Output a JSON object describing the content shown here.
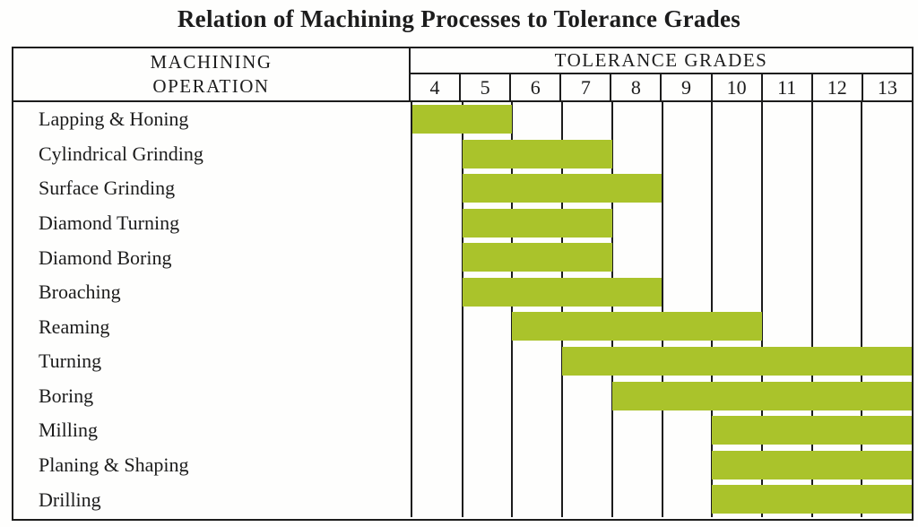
{
  "title": "Relation of Machining Processes to Tolerance Grades",
  "table": {
    "operation_header_line1": "MACHINING",
    "operation_header_line2": "OPERATION",
    "grades_header": "TOLERANCE GRADES",
    "grade_labels": [
      "4",
      "5",
      "6",
      "7",
      "8",
      "9",
      "10",
      "11",
      "12",
      "13"
    ]
  },
  "colors": {
    "bar": "#aac32b",
    "ink": "#1c1c1c"
  },
  "chart_data": {
    "type": "bar",
    "subtype": "horizontal-range-bars",
    "title": "Relation of Machining Processes to Tolerance Grades",
    "xlabel": "TOLERANCE GRADES",
    "ylabel": "MACHINING OPERATION",
    "x_ticks": [
      4,
      5,
      6,
      7,
      8,
      9,
      10,
      11,
      12,
      13
    ],
    "x_range": [
      4,
      13
    ],
    "grid": true,
    "legend": false,
    "bar_color": "#aac32b",
    "categories": [
      "Lapping & Honing",
      "Cylindrical Grinding",
      "Surface Grinding",
      "Diamond Turning",
      "Diamond Boring",
      "Broaching",
      "Reaming",
      "Turning",
      "Boring",
      "Milling",
      "Planing & Shaping",
      "Drilling"
    ],
    "rows": [
      {
        "operation": "Lapping & Honing",
        "grade_min": 4,
        "grade_max": 5
      },
      {
        "operation": "Cylindrical Grinding",
        "grade_min": 5,
        "grade_max": 7
      },
      {
        "operation": "Surface Grinding",
        "grade_min": 5,
        "grade_max": 8
      },
      {
        "operation": "Diamond Turning",
        "grade_min": 5,
        "grade_max": 7
      },
      {
        "operation": "Diamond Boring",
        "grade_min": 5,
        "grade_max": 7
      },
      {
        "operation": "Broaching",
        "grade_min": 5,
        "grade_max": 8
      },
      {
        "operation": "Reaming",
        "grade_min": 6,
        "grade_max": 10
      },
      {
        "operation": "Turning",
        "grade_min": 7,
        "grade_max": 13
      },
      {
        "operation": "Boring",
        "grade_min": 8,
        "grade_max": 13
      },
      {
        "operation": "Milling",
        "grade_min": 10,
        "grade_max": 13
      },
      {
        "operation": "Planing & Shaping",
        "grade_min": 10,
        "grade_max": 13
      },
      {
        "operation": "Drilling",
        "grade_min": 10,
        "grade_max": 13
      }
    ]
  }
}
